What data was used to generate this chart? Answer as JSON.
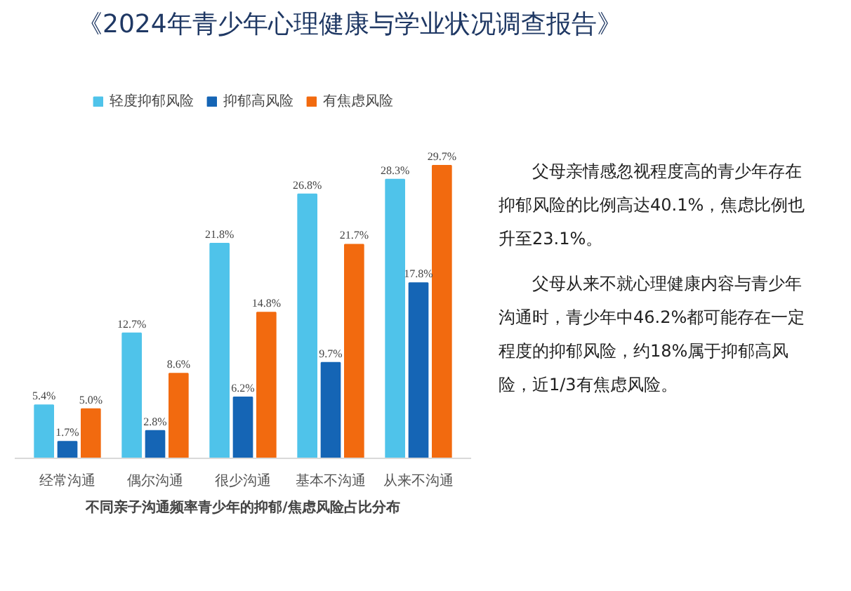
{
  "chart_data": {
    "type": "bar",
    "title": "《2024年青少年心理健康与学业状况调查报告》",
    "xlabel": "不同亲子沟通频率青少年的抑郁/焦虑风险占比分布",
    "categories": [
      "经常沟通",
      "偶尔沟通",
      "很少沟通",
      "基本不沟通",
      "从来不沟通"
    ],
    "series": [
      {
        "name": "轻度抑郁风险",
        "color": "#4fc3ea",
        "values": [
          5.4,
          12.7,
          21.8,
          26.8,
          28.3
        ],
        "value_labels": [
          "5.4%",
          "12.7%",
          "21.8%",
          "26.8%",
          "28.3%"
        ]
      },
      {
        "name": "抑郁高风险",
        "color": "#1565b5",
        "values": [
          1.7,
          2.8,
          6.2,
          9.7,
          17.8
        ],
        "value_labels": [
          "1.7%",
          "2.8%",
          "6.2%",
          "9.7%",
          "17.8%"
        ]
      },
      {
        "name": "有焦虑风险",
        "color": "#f26a0f",
        "values": [
          5.0,
          8.6,
          14.8,
          21.7,
          29.7
        ],
        "value_labels": [
          "5.0%",
          "8.6%",
          "14.8%",
          "21.7%",
          "29.7%"
        ]
      }
    ],
    "legend": "top",
    "grid": false,
    "annotations": [
      "父母亲情感忽视程度高的青少年存在抑郁风险的比例高达40.1%，焦虑比例也升至23.1%。",
      "父母从来不就心理健康内容与青少年沟通时，青少年中46.2%都可能存在一定程度的抑郁风险，约18%属于抑郁高风险，近1/3有焦虑风险。"
    ]
  }
}
